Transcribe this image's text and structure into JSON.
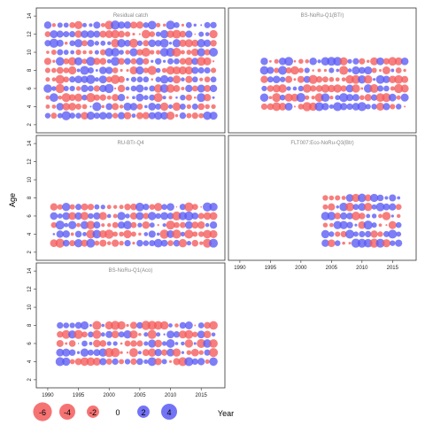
{
  "chart_data": {
    "type": "scatter",
    "subtype": "bubble-residuals",
    "ylabel": "Age",
    "xlabel": "Year",
    "colors": {
      "positive": "#5a5af5",
      "negative": "#f55a5a"
    },
    "legend": {
      "placement": "bottom",
      "values": [
        -6,
        -4,
        -2,
        0,
        2,
        4
      ],
      "labels": [
        "-6",
        "-4",
        "-2",
        "0",
        "2",
        "4"
      ]
    },
    "x_ticks": [
      "1990",
      "1995",
      "2000",
      "2005",
      "2010",
      "2015"
    ],
    "x_tick_values": [
      1990,
      1995,
      2000,
      2005,
      2010,
      2015
    ],
    "y_ticks": [
      "2",
      "4",
      "6",
      "8",
      "10",
      "12",
      "14"
    ],
    "y_tick_values": [
      2,
      4,
      6,
      8,
      10,
      12,
      14
    ],
    "xlim": [
      1989,
      2018
    ],
    "ylim": [
      1.5,
      14.5
    ],
    "panels": [
      {
        "title": "Residual catch",
        "years": [
          1990,
          2017
        ],
        "ages": [
          3,
          13
        ]
      },
      {
        "title": "BS-NoRu-Q1(BTr)",
        "years": [
          1994,
          2017
        ],
        "ages": [
          4,
          9
        ]
      },
      {
        "title": "RU-BTr-Q4",
        "years": [
          1991,
          2017
        ],
        "ages": [
          3,
          7
        ]
      },
      {
        "title": "FLT007:Eco-NoRu-Q3(Btr)",
        "years": [
          2004,
          2016
        ],
        "ages": [
          3,
          8
        ]
      },
      {
        "title": "BS-NoRu-Q1(Aco)",
        "years": [
          1992,
          2017
        ],
        "ages": [
          4,
          8
        ]
      }
    ]
  }
}
